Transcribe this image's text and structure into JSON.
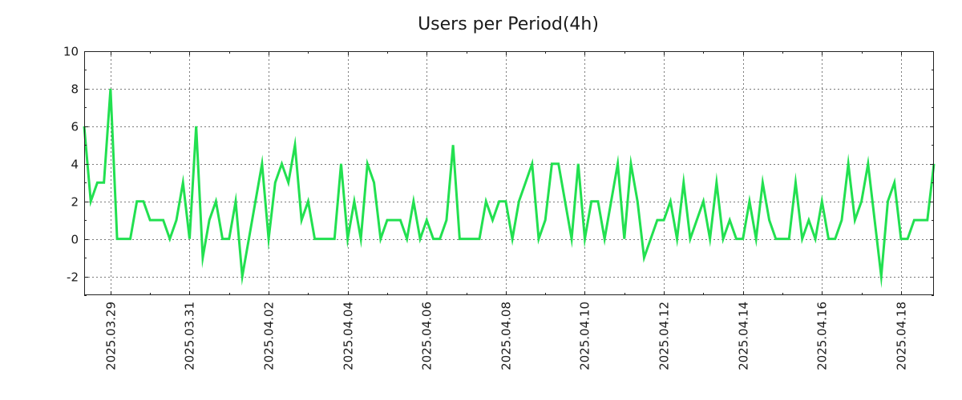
{
  "chart_data": {
    "type": "line",
    "title": "Users per Period(4h)",
    "xlabel": "",
    "ylabel": "",
    "ylim": [
      -3,
      10
    ],
    "y_ticks": [
      10,
      8,
      6,
      4,
      2,
      0,
      -2
    ],
    "x_tick_labels": [
      "2025.03.29",
      "2025.03.31",
      "2025.04.02",
      "2025.04.04",
      "2025.04.06",
      "2025.04.08",
      "2025.04.10",
      "2025.04.12",
      "2025.04.14",
      "2025.04.16",
      "2025.04.18"
    ],
    "x_period": "4h",
    "x_start": "2025.03.28 08:00",
    "grid": true,
    "series": [
      {
        "name": "Users",
        "color": "#22e050",
        "values": [
          6,
          2,
          3,
          3,
          8,
          0,
          0,
          0,
          2,
          2,
          1,
          1,
          1,
          0,
          1,
          3,
          0,
          6,
          -1,
          1,
          2,
          0,
          0,
          2,
          -2,
          0,
          2,
          4,
          0,
          3,
          4,
          3,
          5,
          1,
          2,
          0,
          0,
          0,
          0,
          4,
          0,
          2,
          0,
          4,
          3,
          0,
          1,
          1,
          1,
          0,
          2,
          0,
          1,
          0,
          0,
          1,
          5,
          0,
          0,
          0,
          0,
          2,
          1,
          2,
          2,
          0,
          2,
          3,
          4,
          0,
          1,
          4,
          4,
          2,
          0,
          4,
          0,
          2,
          2,
          0,
          2,
          4,
          0,
          4,
          2,
          -1,
          0,
          1,
          1,
          2,
          0,
          3,
          0,
          1,
          2,
          0,
          3,
          0,
          1,
          0,
          0,
          2,
          0,
          3,
          1,
          0,
          0,
          0,
          3,
          0,
          1,
          0,
          2,
          0,
          0,
          1,
          4,
          1,
          2,
          4,
          1,
          -2,
          2,
          3,
          0,
          0,
          1,
          1,
          1,
          4
        ]
      }
    ]
  }
}
